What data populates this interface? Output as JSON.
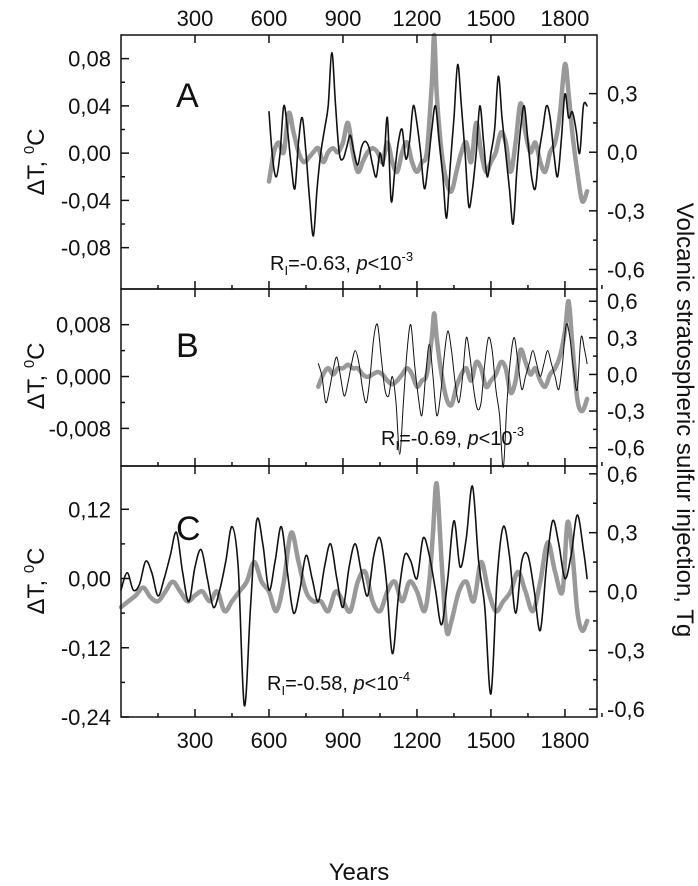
{
  "chart_data": [
    {
      "type": "line",
      "panel_label": "A",
      "y_left_ticks": [
        "0,08",
        "0,04",
        "0,00",
        "-0,04",
        "-0,08"
      ],
      "y_left_values": [
        0.08,
        0.04,
        0.0,
        -0.04,
        -0.08
      ],
      "ylim_left": [
        -0.115,
        0.1
      ],
      "y_right_ticks": [
        "0,3",
        "0,0",
        "-0,3",
        "-0,6"
      ],
      "y_right_values": [
        0.3,
        0.0,
        -0.3,
        -0.6
      ],
      "ylim_right": [
        -0.7,
        0.6
      ],
      "ylabel": "ΔT, 0C",
      "annotation": {
        "r": "R",
        "sub": "I",
        "r_value": "=-0.63, ",
        "p": "p",
        "lt": "<10",
        "exp": "-3"
      },
      "series": [
        {
          "color": "#111111",
          "axis": "left",
          "x": [
            600,
            615,
            630,
            645,
            660,
            675,
            690,
            705,
            720,
            735,
            750,
            765,
            780,
            795,
            810,
            825,
            840,
            855,
            870,
            885,
            900,
            915,
            930,
            945,
            960,
            975,
            990,
            1005,
            1020,
            1035,
            1050,
            1065,
            1080,
            1095,
            1110,
            1125,
            1140,
            1155,
            1170,
            1185,
            1200,
            1215,
            1230,
            1245,
            1260,
            1275,
            1290,
            1305,
            1320,
            1335,
            1350,
            1365,
            1380,
            1395,
            1410,
            1425,
            1440,
            1455,
            1470,
            1485,
            1500,
            1515,
            1530,
            1545,
            1560,
            1575,
            1590,
            1605,
            1620,
            1635,
            1650,
            1665,
            1680,
            1695,
            1710,
            1725,
            1740,
            1755,
            1770,
            1785,
            1800,
            1815,
            1830,
            1845,
            1860,
            1875,
            1890
          ],
          "values": [
            0.035,
            -0.005,
            -0.02,
            0.0,
            0.04,
            0.02,
            -0.01,
            -0.03,
            0.01,
            0.03,
            0.0,
            -0.04,
            -0.07,
            -0.03,
            0.0,
            0.02,
            0.04,
            0.085,
            0.04,
            0.0,
            -0.005,
            0.005,
            0.015,
            0.0,
            -0.01,
            0.005,
            0.01,
            0.005,
            -0.01,
            -0.02,
            0.0,
            -0.01,
            0.03,
            -0.04,
            -0.015,
            0.01,
            0.02,
            -0.005,
            0.01,
            0.04,
            0.025,
            0.0,
            -0.03,
            -0.01,
            0.02,
            0.04,
            0.01,
            -0.02,
            -0.055,
            -0.01,
            0.03,
            0.075,
            0.04,
            0.0,
            -0.045,
            -0.03,
            0.0,
            0.04,
            0.01,
            -0.02,
            0.0,
            0.02,
            0.065,
            0.03,
            0.0,
            -0.03,
            -0.06,
            -0.015,
            0.02,
            0.04,
            0.01,
            -0.02,
            -0.03,
            0.0,
            0.02,
            0.04,
            0.03,
            0.0,
            -0.02,
            0.01,
            0.05,
            0.03,
            0.035,
            0.02,
            0.0,
            0.04,
            0.04
          ]
        },
        {
          "color": "#999999",
          "axis": "right",
          "x": [
            600,
            620,
            640,
            660,
            680,
            700,
            720,
            740,
            760,
            780,
            800,
            820,
            840,
            860,
            880,
            900,
            920,
            940,
            960,
            980,
            1000,
            1020,
            1040,
            1060,
            1080,
            1100,
            1120,
            1140,
            1160,
            1180,
            1200,
            1220,
            1240,
            1260,
            1270,
            1280,
            1300,
            1320,
            1340,
            1360,
            1380,
            1400,
            1420,
            1440,
            1460,
            1480,
            1500,
            1520,
            1540,
            1560,
            1580,
            1600,
            1620,
            1640,
            1660,
            1680,
            1700,
            1720,
            1740,
            1760,
            1780,
            1800,
            1815,
            1830,
            1850,
            1870,
            1890
          ],
          "values": [
            -0.15,
            0.0,
            0.05,
            0.0,
            0.2,
            0.1,
            0.0,
            -0.05,
            -0.03,
            0.0,
            0.02,
            -0.05,
            0.0,
            0.02,
            0.0,
            0.05,
            0.15,
            0.0,
            -0.1,
            -0.05,
            0.0,
            0.02,
            0.0,
            -0.05,
            0.05,
            -0.05,
            -0.1,
            0.0,
            0.05,
            -0.05,
            -0.1,
            -0.05,
            0.0,
            0.35,
            0.6,
            0.3,
            0.0,
            -0.15,
            -0.2,
            -0.1,
            0.0,
            0.05,
            -0.05,
            0.15,
            0.0,
            -0.1,
            -0.05,
            0.0,
            0.1,
            0.05,
            -0.1,
            0.05,
            0.25,
            0.1,
            0.0,
            0.05,
            -0.05,
            -0.1,
            0.0,
            0.05,
            0.2,
            0.45,
            0.3,
            0.1,
            -0.1,
            -0.25,
            -0.2
          ]
        }
      ]
    },
    {
      "type": "line",
      "panel_label": "B",
      "y_left_ticks": [
        "0,008",
        "0,000",
        "-0,008"
      ],
      "y_left_values": [
        0.008,
        0.0,
        -0.008
      ],
      "ylim_left": [
        -0.0138,
        0.0135
      ],
      "y_right_ticks": [
        "0,6",
        "0,3",
        "0,0",
        "-0,3",
        "-0,6"
      ],
      "y_right_values": [
        0.6,
        0.3,
        0.0,
        -0.3,
        -0.6
      ],
      "ylim_right": [
        -0.75,
        0.7
      ],
      "ylabel": "ΔT, 0C",
      "annotation": {
        "r": "R",
        "sub": "I",
        "r_value": "=-0.69, ",
        "p": "p",
        "lt": "<10",
        "exp": "-3"
      },
      "series": [
        {
          "color": "#111111",
          "axis": "left",
          "x": [
            800,
            815,
            830,
            845,
            860,
            875,
            890,
            905,
            920,
            935,
            950,
            965,
            980,
            995,
            1010,
            1025,
            1040,
            1055,
            1070,
            1085,
            1100,
            1115,
            1130,
            1145,
            1160,
            1175,
            1190,
            1205,
            1220,
            1235,
            1250,
            1265,
            1280,
            1295,
            1310,
            1325,
            1340,
            1355,
            1370,
            1385,
            1400,
            1415,
            1430,
            1445,
            1460,
            1475,
            1490,
            1505,
            1520,
            1535,
            1550,
            1565,
            1580,
            1595,
            1610,
            1625,
            1640,
            1655,
            1670,
            1685,
            1700,
            1715,
            1730,
            1745,
            1760,
            1775,
            1790,
            1805,
            1820,
            1835,
            1850,
            1865,
            1880,
            1890
          ],
          "values": [
            0.002,
            0.0,
            -0.004,
            -0.002,
            0.001,
            0.003,
            0.0,
            -0.003,
            -0.001,
            0.002,
            0.004,
            0.002,
            -0.002,
            -0.004,
            0.0,
            0.006,
            0.008,
            0.003,
            -0.002,
            -0.003,
            0.0,
            -0.004,
            -0.012,
            -0.004,
            0.004,
            0.008,
            0.002,
            -0.003,
            -0.006,
            0.0,
            0.005,
            0.0,
            -0.006,
            -0.003,
            0.003,
            0.007,
            0.004,
            -0.001,
            -0.004,
            0.0,
            0.006,
            0.003,
            -0.002,
            -0.005,
            -0.004,
            0.002,
            0.006,
            0.004,
            -0.002,
            -0.006,
            -0.014,
            -0.004,
            0.003,
            0.006,
            0.002,
            -0.002,
            0.0,
            0.002,
            0.004,
            0.002,
            0.0,
            0.002,
            0.004,
            0.002,
            0.0,
            -0.002,
            0.002,
            0.008,
            0.006,
            0.001,
            -0.002,
            0.006,
            0.004,
            0.002
          ]
        },
        {
          "color": "#999999",
          "axis": "right",
          "x": [
            800,
            820,
            840,
            860,
            880,
            900,
            920,
            940,
            960,
            980,
            1000,
            1020,
            1040,
            1060,
            1080,
            1100,
            1120,
            1140,
            1160,
            1180,
            1200,
            1220,
            1240,
            1260,
            1270,
            1280,
            1300,
            1320,
            1340,
            1360,
            1380,
            1400,
            1420,
            1440,
            1460,
            1480,
            1500,
            1520,
            1540,
            1560,
            1580,
            1600,
            1620,
            1640,
            1660,
            1680,
            1700,
            1720,
            1740,
            1760,
            1780,
            1800,
            1815,
            1830,
            1850,
            1870,
            1890
          ],
          "values": [
            -0.1,
            0.0,
            0.05,
            0.0,
            0.05,
            0.05,
            0.08,
            0.05,
            0.05,
            0.0,
            -0.02,
            0.0,
            0.02,
            0.0,
            -0.05,
            -0.08,
            -0.05,
            0.0,
            0.05,
            0.0,
            -0.1,
            -0.05,
            0.0,
            0.3,
            0.5,
            0.3,
            0.0,
            -0.2,
            -0.25,
            -0.1,
            0.0,
            0.05,
            -0.05,
            0.1,
            0.05,
            -0.1,
            -0.05,
            0.0,
            0.1,
            0.05,
            -0.15,
            -0.05,
            0.2,
            0.1,
            0.0,
            0.05,
            -0.05,
            -0.1,
            0.0,
            0.05,
            0.15,
            0.35,
            0.6,
            0.25,
            -0.2,
            -0.3,
            -0.2
          ]
        }
      ]
    },
    {
      "type": "line",
      "panel_label": "C",
      "y_left_ticks": [
        "0,12",
        "0,00",
        "-0,12",
        "-0,24"
      ],
      "y_left_values": [
        0.12,
        0.0,
        -0.12,
        -0.24
      ],
      "ylim_left": [
        -0.24,
        0.195
      ],
      "y_right_ticks": [
        "0,6",
        "0,3",
        "0,0",
        "-0,3",
        "-0,6"
      ],
      "y_right_values": [
        0.6,
        0.3,
        0.0,
        -0.3,
        -0.6
      ],
      "ylim_right": [
        -0.64,
        0.64
      ],
      "ylabel": "ΔT, 0C",
      "annotation": {
        "r": "R",
        "sub": "I",
        "r_value": "=-0.58, ",
        "p": "p",
        "lt": "<10",
        "exp": "-4"
      },
      "series": [
        {
          "color": "#111111",
          "axis": "left",
          "x": [
            0,
            25,
            50,
            75,
            100,
            125,
            150,
            175,
            200,
            225,
            250,
            275,
            300,
            325,
            350,
            375,
            400,
            425,
            450,
            475,
            500,
            525,
            550,
            575,
            600,
            625,
            650,
            675,
            700,
            725,
            750,
            775,
            800,
            825,
            850,
            875,
            900,
            925,
            950,
            975,
            1000,
            1025,
            1050,
            1075,
            1100,
            1125,
            1150,
            1175,
            1200,
            1225,
            1250,
            1275,
            1300,
            1325,
            1350,
            1375,
            1400,
            1425,
            1450,
            1475,
            1500,
            1525,
            1550,
            1575,
            1600,
            1625,
            1650,
            1675,
            1700,
            1725,
            1750,
            1775,
            1800,
            1825,
            1850,
            1875,
            1890
          ],
          "values": [
            -0.02,
            0.01,
            -0.02,
            -0.01,
            0.03,
            0.01,
            -0.03,
            0.0,
            0.04,
            0.08,
            0.01,
            -0.04,
            0.02,
            0.05,
            0.0,
            -0.05,
            -0.02,
            0.03,
            0.09,
            0.02,
            -0.22,
            -0.05,
            0.1,
            0.06,
            -0.02,
            0.03,
            0.09,
            0.01,
            -0.06,
            -0.02,
            0.04,
            0.0,
            -0.04,
            0.02,
            0.06,
            0.0,
            -0.05,
            0.02,
            0.06,
            0.01,
            -0.03,
            0.04,
            0.07,
            0.0,
            -0.13,
            -0.03,
            0.04,
            0.03,
            0.0,
            0.07,
            0.04,
            -0.02,
            -0.08,
            0.0,
            0.1,
            0.02,
            0.07,
            0.16,
            0.03,
            -0.05,
            -0.2,
            0.0,
            0.09,
            0.04,
            -0.06,
            0.03,
            0.04,
            -0.02,
            -0.09,
            0.02,
            0.1,
            0.06,
            0.0,
            0.04,
            0.11,
            0.05,
            0.0
          ]
        },
        {
          "color": "#999999",
          "axis": "right",
          "x": [
            0,
            30,
            60,
            90,
            120,
            150,
            180,
            210,
            240,
            270,
            300,
            330,
            360,
            390,
            420,
            450,
            480,
            510,
            540,
            570,
            600,
            630,
            660,
            690,
            720,
            750,
            780,
            810,
            840,
            870,
            900,
            930,
            960,
            990,
            1020,
            1050,
            1080,
            1110,
            1140,
            1170,
            1200,
            1230,
            1250,
            1265,
            1280,
            1300,
            1320,
            1340,
            1370,
            1400,
            1430,
            1460,
            1490,
            1520,
            1550,
            1580,
            1610,
            1640,
            1670,
            1700,
            1730,
            1760,
            1790,
            1810,
            1830,
            1850,
            1870,
            1890
          ],
          "values": [
            -0.08,
            -0.05,
            -0.02,
            0.02,
            -0.03,
            -0.05,
            0.0,
            0.05,
            0.0,
            -0.05,
            -0.02,
            0.0,
            -0.05,
            0.0,
            -0.1,
            -0.05,
            0.0,
            0.05,
            0.15,
            0.05,
            0.0,
            -0.1,
            0.05,
            0.3,
            0.15,
            0.0,
            -0.05,
            -0.05,
            -0.1,
            0.0,
            -0.05,
            -0.1,
            0.05,
            0.1,
            -0.05,
            -0.1,
            0.0,
            0.05,
            -0.05,
            0.05,
            0.0,
            -0.1,
            0.05,
            0.3,
            0.55,
            0.15,
            -0.2,
            -0.15,
            0.0,
            0.05,
            -0.05,
            0.15,
            0.0,
            -0.1,
            -0.05,
            0.0,
            0.1,
            0.0,
            -0.1,
            0.05,
            0.25,
            0.1,
            0.0,
            0.35,
            0.2,
            -0.1,
            -0.2,
            -0.15
          ]
        }
      ]
    }
  ],
  "x_axis": {
    "xlim": [
      0,
      1930
    ],
    "tick_values": [
      300,
      600,
      900,
      1200,
      1500,
      1800
    ],
    "tick_labels": [
      "300",
      "600",
      "900",
      "1200",
      "1500",
      "1800"
    ],
    "xlabel": "Years"
  },
  "right_axis_title": "Volcanic stratospheric sulfur injection, Tg",
  "left_axis_title": {
    "delta_t": "ΔT, ",
    "sup": "0",
    "unit": "C"
  }
}
